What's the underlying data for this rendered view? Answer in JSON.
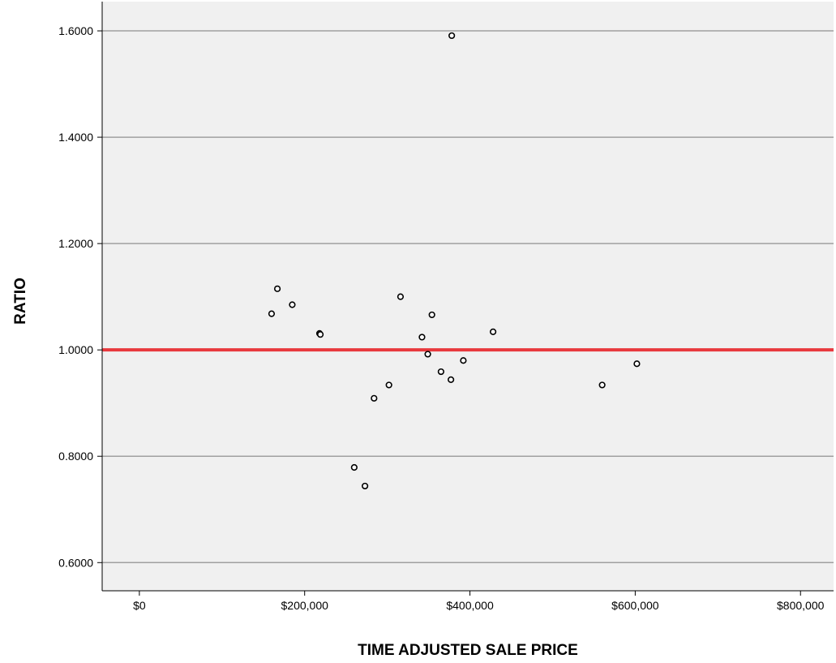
{
  "chart_data": {
    "type": "scatter",
    "title": "",
    "xlabel": "TIME ADJUSTED SALE PRICE",
    "ylabel": "RATIO",
    "xlim": [
      -45000,
      840000
    ],
    "ylim": [
      0.547,
      1.655
    ],
    "x_ticks": [
      0,
      200000,
      400000,
      600000,
      800000
    ],
    "x_tick_labels": [
      "$0",
      "$200,000",
      "$400,000",
      "$600,000",
      "$800,000"
    ],
    "y_ticks": [
      0.6,
      0.8,
      1.0,
      1.2,
      1.4,
      1.6
    ],
    "y_tick_labels": [
      "0.6000",
      "0.8000",
      "1.0000",
      "1.2000",
      "1.4000",
      "1.6000"
    ],
    "grid": "horizontal",
    "reference_line": {
      "y": 1.0,
      "color": "#e8383d"
    },
    "colors": {
      "plot_background": "#f0f0f0",
      "grid": "#a0a0a0",
      "marker_stroke": "#000000",
      "marker_fill": "#ffffff"
    },
    "points": [
      {
        "x": 378000,
        "y": 1.591
      },
      {
        "x": 160000,
        "y": 1.068
      },
      {
        "x": 167000,
        "y": 1.115
      },
      {
        "x": 185000,
        "y": 1.085
      },
      {
        "x": 218000,
        "y": 1.031
      },
      {
        "x": 219000,
        "y": 1.029
      },
      {
        "x": 316000,
        "y": 1.1
      },
      {
        "x": 354000,
        "y": 1.066
      },
      {
        "x": 342000,
        "y": 1.024
      },
      {
        "x": 349000,
        "y": 0.992
      },
      {
        "x": 392000,
        "y": 0.98
      },
      {
        "x": 428000,
        "y": 1.034
      },
      {
        "x": 365000,
        "y": 0.959
      },
      {
        "x": 377000,
        "y": 0.944
      },
      {
        "x": 302000,
        "y": 0.934
      },
      {
        "x": 284000,
        "y": 0.909
      },
      {
        "x": 260000,
        "y": 0.779
      },
      {
        "x": 273000,
        "y": 0.744
      },
      {
        "x": 560000,
        "y": 0.934
      },
      {
        "x": 602000,
        "y": 0.974
      }
    ]
  }
}
